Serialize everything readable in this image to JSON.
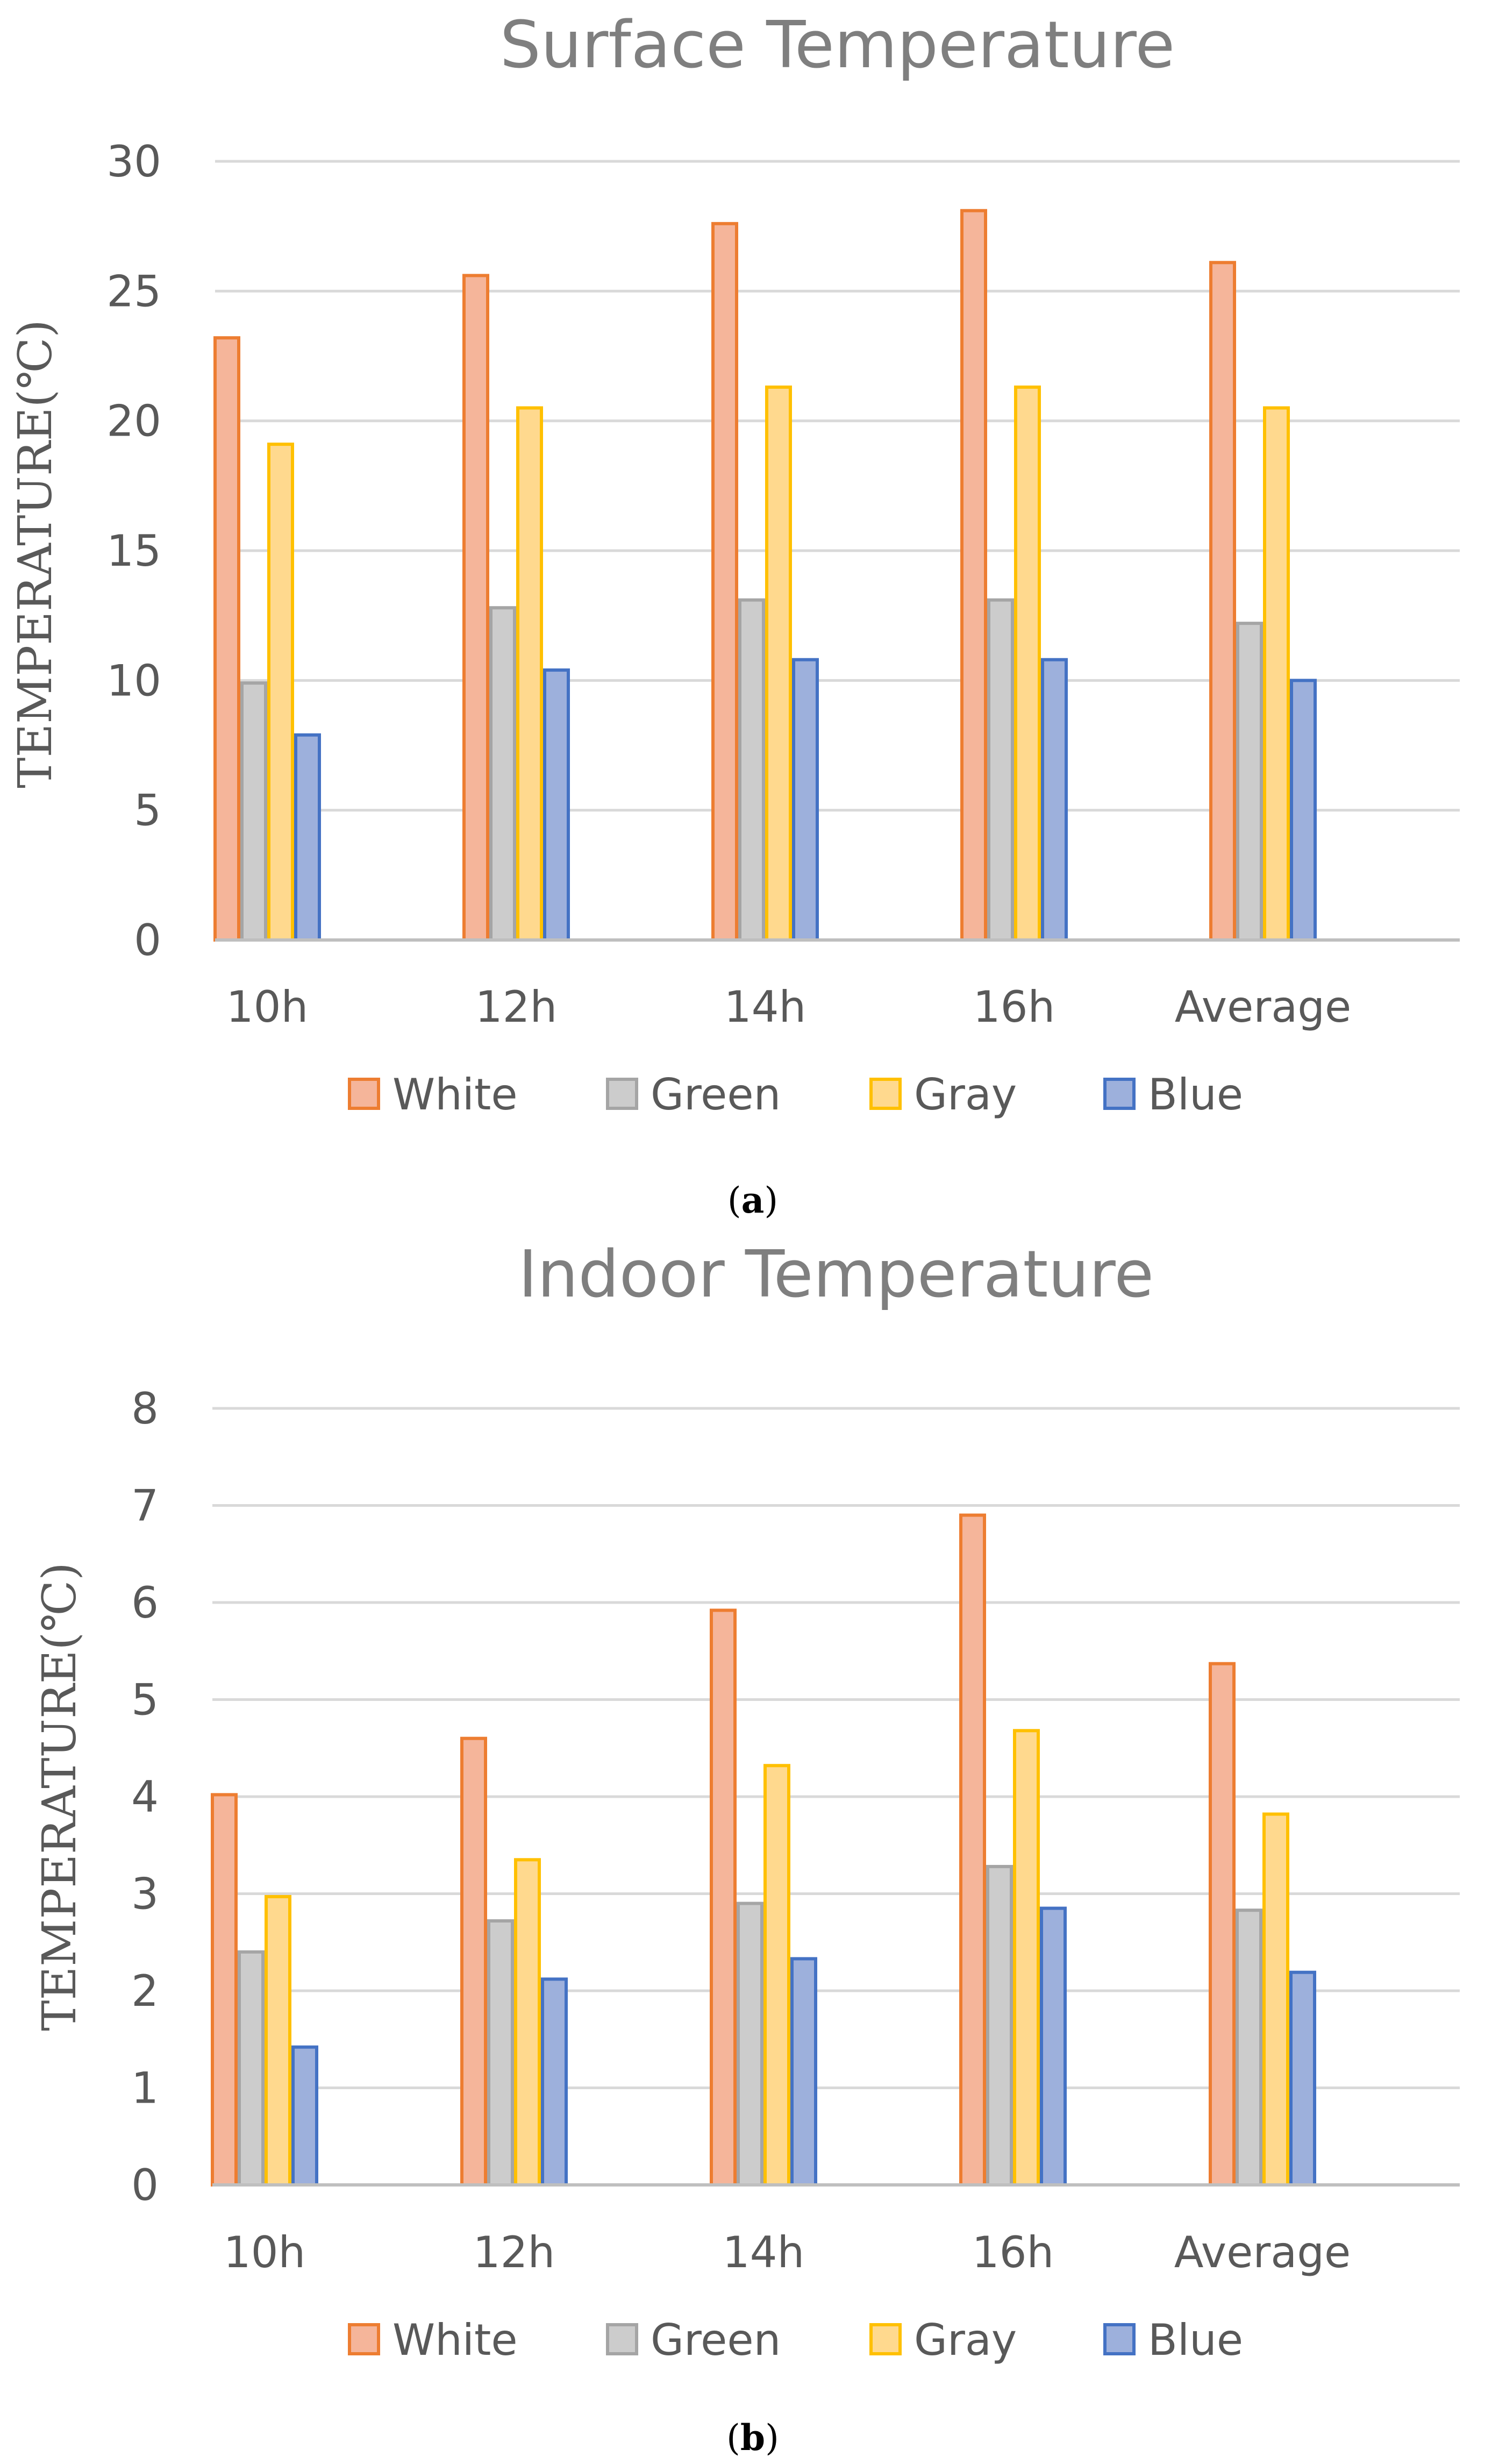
{
  "chart_data": [
    {
      "type": "bar",
      "title": "Surface Temperature",
      "ylabel": "TEMPERATURE(℃)",
      "xlabel": "",
      "categories": [
        "10h",
        "12h",
        "14h",
        "16h",
        "Average"
      ],
      "ylim": [
        0,
        30
      ],
      "yticks": [
        0,
        5,
        10,
        15,
        20,
        25,
        30
      ],
      "grid": true,
      "legend_position": "bottom",
      "series": [
        {
          "name": "White",
          "values": [
            23.2,
            25.6,
            27.6,
            28.1,
            26.1
          ]
        },
        {
          "name": "Green",
          "values": [
            9.9,
            12.8,
            13.1,
            13.1,
            12.2
          ]
        },
        {
          "name": "Gray",
          "values": [
            19.1,
            20.5,
            21.3,
            21.3,
            20.5
          ]
        },
        {
          "name": "Blue",
          "values": [
            7.9,
            10.4,
            10.8,
            10.8,
            10.0
          ]
        }
      ],
      "caption_label": "a"
    },
    {
      "type": "bar",
      "title": "Indoor Temperature",
      "ylabel": "TEMPERATURE(℃)",
      "xlabel": "",
      "categories": [
        "10h",
        "12h",
        "14h",
        "16h",
        "Average"
      ],
      "ylim": [
        0,
        8
      ],
      "yticks": [
        0,
        1,
        2,
        3,
        4,
        5,
        6,
        7,
        8
      ],
      "grid": true,
      "legend_position": "bottom",
      "series": [
        {
          "name": "White",
          "values": [
            4.02,
            4.6,
            5.92,
            6.9,
            5.37
          ]
        },
        {
          "name": "Green",
          "values": [
            2.4,
            2.72,
            2.9,
            3.28,
            2.83
          ]
        },
        {
          "name": "Gray",
          "values": [
            2.97,
            3.35,
            4.32,
            4.68,
            3.82
          ]
        },
        {
          "name": "Blue",
          "values": [
            1.42,
            2.12,
            2.33,
            2.85,
            2.19
          ]
        }
      ],
      "caption_label": "b"
    }
  ],
  "series_colors": {
    "White": {
      "fill": "#f5b59a",
      "stroke": "#ed7d31"
    },
    "Green": {
      "fill": "#cccccc",
      "stroke": "#a5a5a5"
    },
    "Gray": {
      "fill": "#ffd98e",
      "stroke": "#ffc000"
    },
    "Blue": {
      "fill": "#9db0dc",
      "stroke": "#4472c4"
    }
  }
}
